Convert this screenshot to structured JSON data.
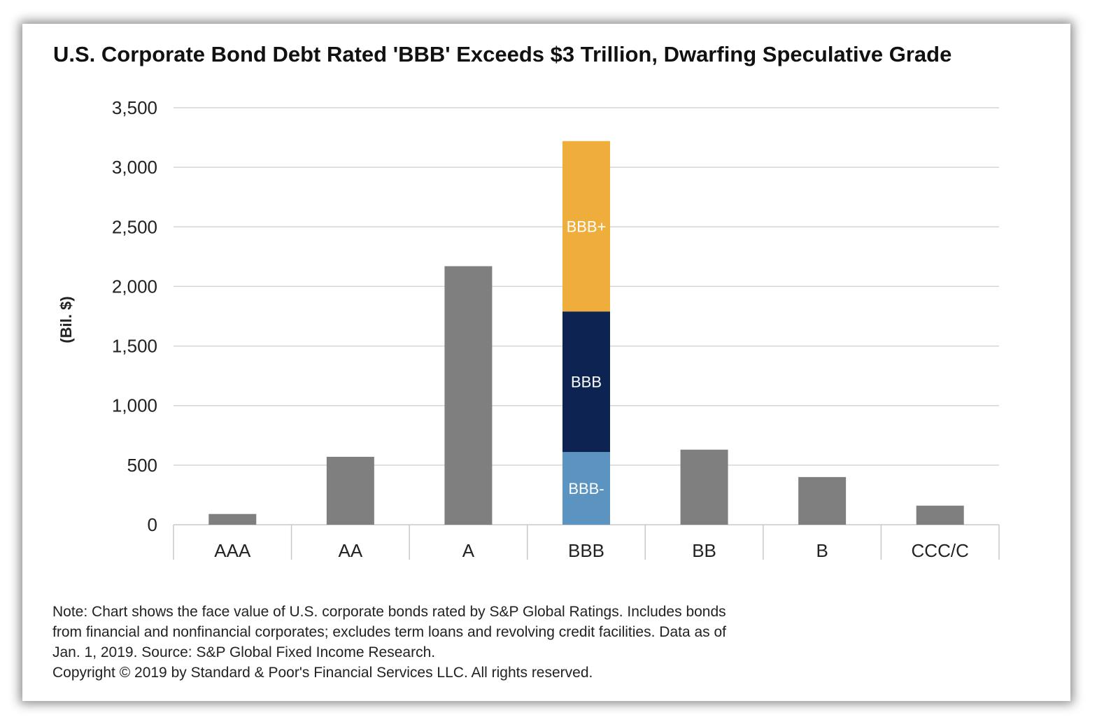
{
  "chart_data": {
    "type": "bar",
    "title": "U.S. Corporate Bond Debt Rated 'BBB' Exceeds $3 Trillion, Dwarfing Speculative Grade",
    "ylabel": "(Bil. $)",
    "xlabel": "",
    "ylim": [
      0,
      3500
    ],
    "yticks": [
      0,
      500,
      1000,
      1500,
      2000,
      2500,
      3000,
      3500
    ],
    "ytick_labels": [
      "0",
      "500",
      "1,000",
      "1,500",
      "2,000",
      "2,500",
      "3,000",
      "3,500"
    ],
    "grid": true,
    "categories": [
      "AAA",
      "AA",
      "A",
      "BBB",
      "BB",
      "B",
      "CCC/C"
    ],
    "values": [
      90,
      570,
      2170,
      3220,
      630,
      400,
      160
    ],
    "stack": {
      "category": "BBB",
      "segments": [
        {
          "label": "BBB-",
          "value": 610,
          "color": "#5b93c1"
        },
        {
          "label": "BBB",
          "value": 1180,
          "color": "#0d2452"
        },
        {
          "label": "BBB+",
          "value": 1430,
          "color": "#efae3c"
        }
      ]
    },
    "bar_color": "#7f7f7f"
  },
  "notes": {
    "line1": "Note: Chart shows the face value of U.S. corporate bonds rated by S&P Global Ratings. Includes bonds",
    "line2": "from financial and nonfinancial corporates; excludes term loans and revolving credit facilities. Data as of",
    "line3": "Jan. 1, 2019. Source: S&P Global Fixed Income Research.",
    "copyright": "Copyright © 2019 by Standard & Poor's Financial Services LLC. All rights reserved."
  }
}
